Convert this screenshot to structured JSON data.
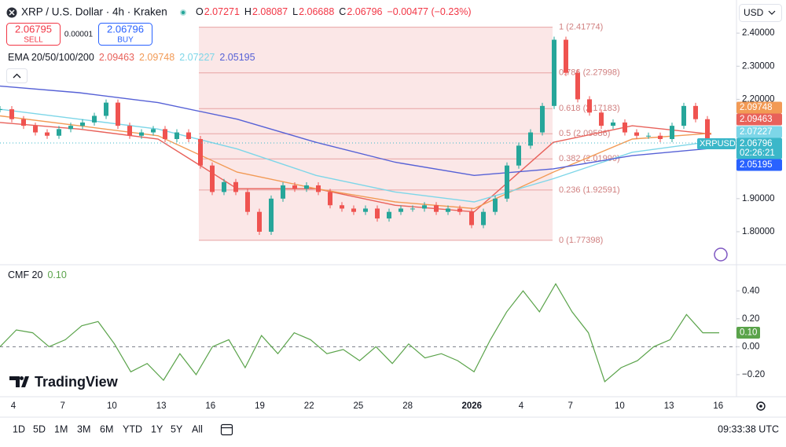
{
  "header": {
    "symbol": "XRP / U.S. Dollar · 4h · Kraken",
    "ohlc": [
      {
        "label": "O",
        "value": "2.07271"
      },
      {
        "label": "H",
        "value": "2.08087"
      },
      {
        "label": "L",
        "value": "2.06688"
      },
      {
        "label": "C",
        "value": "2.06796"
      }
    ],
    "change": "−0.00477 (−0.23%)"
  },
  "trade": {
    "sell_price": "2.06795",
    "sell": "SELL",
    "spread": "0.00001",
    "buy_price": "2.06796",
    "buy": "BUY"
  },
  "currency": "USD",
  "logo": "TradingView",
  "chart_data": [
    {
      "type": "candlestick",
      "ylim": [
        1.705,
        2.5
      ],
      "yticks": [
        {
          "value": 2.4,
          "label": "2.40000"
        },
        {
          "value": 2.3,
          "label": "2.30000"
        },
        {
          "value": 2.2,
          "label": "2.20000"
        },
        {
          "value": 1.9,
          "label": "1.90000"
        },
        {
          "value": 1.8,
          "label": "1.80000"
        }
      ],
      "x_labels": [
        "4",
        "7",
        "10",
        "13",
        "16",
        "19",
        "22",
        "25",
        "28",
        "2026",
        "4",
        "7",
        "10",
        "13",
        "16"
      ],
      "series": [
        {
          "name": "XRPUSD",
          "up_color": "#26a69a",
          "down_color": "#ef5350",
          "last_label": "2.06796",
          "countdown": "02:26:21",
          "values": [
            2.17,
            2.14,
            2.12,
            2.1,
            2.09,
            2.11,
            2.12,
            2.13,
            2.15,
            2.19,
            2.12,
            2.09,
            2.1,
            2.11,
            2.08,
            2.1,
            2.08,
            2.0,
            1.92,
            1.95,
            1.92,
            1.86,
            1.8,
            1.9,
            1.94,
            1.93,
            1.94,
            1.92,
            1.88,
            1.87,
            1.86,
            1.87,
            1.84,
            1.86,
            1.87,
            1.87,
            1.88,
            1.86,
            1.87,
            1.86,
            1.82,
            1.86,
            1.9,
            2.0,
            2.06,
            2.1,
            2.18,
            2.38,
            2.28,
            2.2,
            2.16,
            2.12,
            2.13,
            2.1,
            2.09,
            2.09,
            2.08,
            2.12,
            2.18,
            2.14,
            2.06796
          ]
        }
      ],
      "ema": {
        "label": "EMA 20/50/100/200",
        "lines": [
          {
            "color": "#e8615a",
            "last_label": "2.09463",
            "values": [
              2.13,
              2.11,
              2.08,
              1.93,
              1.93,
              1.88,
              1.86,
              2.07,
              2.12,
              2.09463
            ]
          },
          {
            "color": "#f29a55",
            "last_label": "2.09748",
            "values": [
              2.15,
              2.12,
              2.09,
              1.98,
              1.93,
              1.89,
              1.87,
              1.98,
              2.08,
              2.09748
            ]
          },
          {
            "color": "#7dd6e8",
            "last_label": "2.07227",
            "values": [
              2.17,
              2.14,
              2.11,
              2.05,
              1.97,
              1.92,
              1.89,
              1.96,
              2.04,
              2.07227
            ]
          },
          {
            "color": "#5661d6",
            "last_label": "2.05195",
            "values": [
              2.24,
              2.22,
              2.19,
              2.14,
              2.07,
              2.01,
              1.97,
              1.99,
              2.03,
              2.05195
            ]
          }
        ]
      },
      "fib_levels": [
        {
          "price": 2.41774,
          "label": "1 (2.41774)"
        },
        {
          "price": 2.27998,
          "label": "0.786 (2.27998)"
        },
        {
          "price": 2.17183,
          "label": "0.618 (2.17183)"
        },
        {
          "price": 2.09586,
          "label": "0.5 (2.09586)"
        },
        {
          "price": 2.0199,
          "label": "0.382 (2.01990)"
        },
        {
          "price": 1.92591,
          "label": "0.236 (1.92591)"
        },
        {
          "price": 1.77398,
          "label": "0 (1.77398)"
        }
      ]
    },
    {
      "type": "line",
      "title": "CMF 20",
      "ylim": [
        -0.33,
        0.57
      ],
      "yticks": [
        {
          "value": 0.4,
          "label": "0.40"
        },
        {
          "value": 0.2,
          "label": "0.20"
        },
        {
          "value": 0,
          "label": "0.00"
        },
        {
          "value": -0.2,
          "label": "−0.20"
        }
      ],
      "series": [
        {
          "color": "#5aa34a",
          "last_label": "0.10",
          "values": [
            0.0,
            0.12,
            0.1,
            0.0,
            0.05,
            0.15,
            0.18,
            0.02,
            -0.18,
            -0.12,
            -0.24,
            -0.05,
            -0.2,
            0.0,
            0.05,
            -0.15,
            0.08,
            -0.05,
            0.1,
            0.05,
            -0.05,
            -0.02,
            -0.1,
            0.0,
            -0.12,
            0.02,
            -0.08,
            -0.05,
            -0.1,
            -0.18,
            0.05,
            0.25,
            0.4,
            0.25,
            0.45,
            0.25,
            0.1,
            -0.25,
            -0.15,
            -0.1,
            0.0,
            0.05,
            0.23,
            0.1,
            0.1
          ]
        }
      ]
    }
  ],
  "toolbar": {
    "ranges": [
      "1D",
      "5D",
      "1M",
      "3M",
      "6M",
      "YTD",
      "1Y",
      "5Y",
      "All"
    ],
    "clock": "09:33:38 UTC"
  }
}
